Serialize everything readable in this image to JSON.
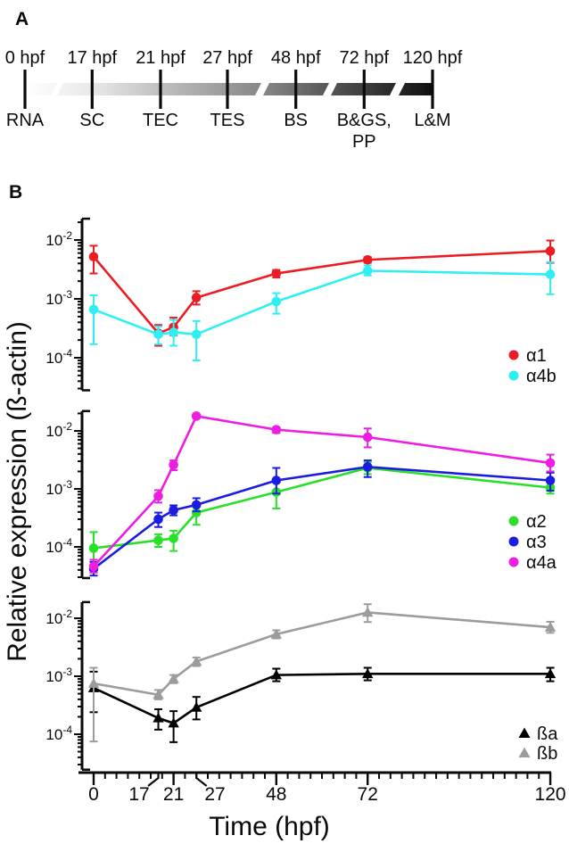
{
  "panel_a": {
    "label": "A",
    "timepoints": [
      {
        "time": "0 hpf",
        "stage": "RNA"
      },
      {
        "time": "17 hpf",
        "stage": "SC"
      },
      {
        "time": "21 hpf",
        "stage": "TEC"
      },
      {
        "time": "27 hpf",
        "stage": "TES"
      },
      {
        "time": "48 hpf",
        "stage": "BS"
      },
      {
        "time": "72 hpf",
        "stage": "B&GS,",
        "stage2": "PP"
      },
      {
        "time": "120 hpf",
        "stage": "L&M"
      }
    ]
  },
  "panel_b": {
    "label": "B",
    "ylabel": "Relative expression (ß-actin)",
    "xlabel": "Time (hpf)",
    "x_ticks": [
      0,
      17,
      21,
      27,
      48,
      72,
      120
    ],
    "x_minor_step": 3,
    "chart_data": [
      {
        "type": "line",
        "x": [
          0,
          17,
          21,
          27,
          48,
          72,
          120
        ],
        "yscale": "log",
        "ylim": [
          2.8e-05,
          0.023
        ],
        "grid": false,
        "legend_position": "right-bottom",
        "y_ticks": [
          {
            "base": "10",
            "exponent": "-2",
            "value": 0.01
          },
          {
            "base": "10",
            "exponent": "-3",
            "value": 0.001
          },
          {
            "base": "10",
            "exponent": "-4",
            "value": 0.0001
          }
        ],
        "series": [
          {
            "name": "α1",
            "color": "#EB1C23",
            "marker": "circle",
            "values": [
              0.0052,
              0.00026,
              0.00033,
              0.00105,
              0.0027,
              0.0046,
              0.0065
            ],
            "err_hi": [
              0.008,
              0.00036,
              0.00048,
              0.00135,
              0.0031,
              0.0051,
              0.0098
            ],
            "err_lo": [
              0.0027,
              0.00016,
              0.00024,
              0.0008,
              0.0023,
              0.0041,
              0.0041
            ]
          },
          {
            "name": "α4b",
            "color": "#30EFF2",
            "marker": "circle",
            "values": [
              0.00066,
              0.00025,
              0.00027,
              0.00025,
              0.0009,
              0.003,
              0.0026
            ],
            "err_hi": [
              0.00115,
              0.00034,
              0.00044,
              0.00042,
              0.00125,
              0.0037,
              0.0042
            ],
            "err_lo": [
              0.00017,
              0.00017,
              0.00016,
              9e-05,
              0.00056,
              0.0025,
              0.0012
            ]
          }
        ]
      },
      {
        "type": "line",
        "x": [
          0,
          17,
          21,
          27,
          48,
          72,
          120
        ],
        "yscale": "log",
        "ylim": [
          2.9e-05,
          0.022
        ],
        "grid": false,
        "legend_position": "right-bottom",
        "y_ticks": [
          {
            "base": "10",
            "exponent": "-2",
            "value": 0.01
          },
          {
            "base": "10",
            "exponent": "-3",
            "value": 0.001
          },
          {
            "base": "10",
            "exponent": "-4",
            "value": 0.0001
          }
        ],
        "series": [
          {
            "name": "α2",
            "color": "#29E029",
            "marker": "circle",
            "values": [
              9.5e-05,
              0.00013,
              0.00014,
              0.00039,
              0.00088,
              0.0023,
              0.00105
            ],
            "err_hi": [
              0.00018,
              0.000165,
              0.00019,
              0.00049,
              0.0013,
              0.0029,
              0.00135
            ],
            "err_lo": [
              5e-05,
              0.0001,
              8.5e-05,
              0.00024,
              0.00046,
              0.0018,
              0.00083
            ]
          },
          {
            "name": "α3",
            "color": "#1C1CE0",
            "marker": "circle",
            "values": [
              4.2e-05,
              0.0003,
              0.00043,
              0.00053,
              0.0014,
              0.0024,
              0.0014
            ],
            "err_hi": [
              5.5e-05,
              0.00039,
              0.00052,
              0.00069,
              0.0023,
              0.0031,
              0.0019
            ],
            "err_lo": [
              3.2e-05,
              0.00022,
              0.00035,
              0.00041,
              0.00083,
              0.0016,
              0.00093
            ]
          },
          {
            "name": "α4a",
            "color": "#EE1DE2",
            "marker": "circle",
            "values": [
              4.6e-05,
              0.00075,
              0.0026,
              0.018,
              0.0105,
              0.0078,
              0.0028
            ],
            "err_hi": [
              6e-05,
              0.00095,
              0.0031,
              0.019,
              0.0115,
              0.011,
              0.0039
            ],
            "err_lo": [
              3.6e-05,
              0.00058,
              0.0021,
              0.0165,
              0.0092,
              0.0052,
              0.002
            ]
          }
        ]
      },
      {
        "type": "line",
        "x": [
          0,
          17,
          21,
          27,
          48,
          72,
          120
        ],
        "yscale": "log",
        "ylim": [
          2.45e-05,
          0.019
        ],
        "grid": false,
        "legend_position": "right-bottom",
        "y_ticks": [
          {
            "base": "10",
            "exponent": "-2",
            "value": 0.01
          },
          {
            "base": "10",
            "exponent": "-3",
            "value": 0.001
          },
          {
            "base": "10",
            "exponent": "-4",
            "value": 0.0001
          }
        ],
        "series": [
          {
            "name": "ßa",
            "color": "#000000",
            "marker": "triangle",
            "values": [
              0.00063,
              0.00019,
              0.000155,
              0.00029,
              0.00105,
              0.0011,
              0.0011
            ],
            "err_hi": [
              0.0012,
              0.00027,
              0.00025,
              0.00044,
              0.00135,
              0.0014,
              0.0014
            ],
            "err_lo": [
              0.00024,
              0.00012,
              7.3e-05,
              0.00018,
              0.00082,
              0.00085,
              0.00082
            ]
          },
          {
            "name": "ßb",
            "color": "#9C9C9C",
            "marker": "triangle",
            "values": [
              0.00075,
              0.00048,
              0.0009,
              0.0018,
              0.0053,
              0.0126,
              0.007
            ],
            "err_hi": [
              0.0014,
              0.00058,
              0.00105,
              0.0021,
              0.0062,
              0.0175,
              0.0087
            ],
            "err_lo": [
              7.5e-05,
              0.0004,
              0.00076,
              0.0015,
              0.0045,
              0.0086,
              0.0056
            ]
          }
        ]
      }
    ]
  }
}
